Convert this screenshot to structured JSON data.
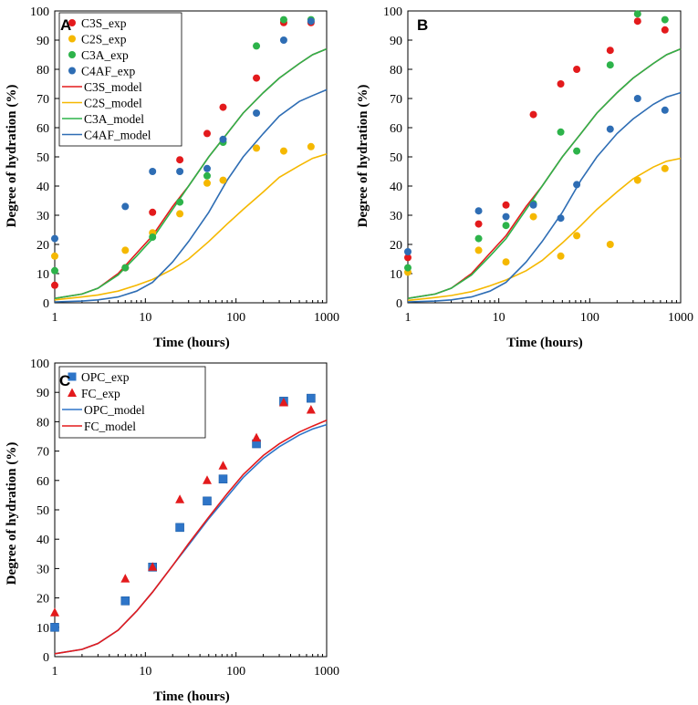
{
  "chart_data": [
    {
      "type": "scatter",
      "panel_label": "A",
      "xscale": "log",
      "xlim": [
        1,
        1000
      ],
      "ylim": [
        0,
        100
      ],
      "xticks": [
        "1",
        "10",
        "100",
        "1000"
      ],
      "yticks": [
        "0",
        "10",
        "20",
        "30",
        "40",
        "50",
        "60",
        "70",
        "80",
        "90",
        "100"
      ],
      "xlabel": "Time (hours)",
      "ylabel": "Degree of hydration (%)",
      "legend_position": "top-left",
      "series": [
        {
          "name": "C3S_exp",
          "kind": "points",
          "marker": "circle",
          "color": "#e31a1c",
          "x": [
            1,
            6,
            12,
            24,
            48,
            72,
            168,
            336,
            672
          ],
          "y": [
            6,
            12,
            31,
            49,
            58,
            67,
            77,
            96,
            96
          ]
        },
        {
          "name": "C2S_exp",
          "kind": "points",
          "marker": "circle",
          "color": "#f5b800",
          "x": [
            1,
            6,
            12,
            24,
            48,
            72,
            168,
            336,
            672
          ],
          "y": [
            16,
            18,
            24,
            30.5,
            41,
            42,
            53,
            52,
            53.5
          ]
        },
        {
          "name": "C3A_exp",
          "kind": "points",
          "marker": "circle",
          "color": "#2db34a",
          "x": [
            1,
            6,
            12,
            24,
            48,
            72,
            168,
            336,
            672
          ],
          "y": [
            11,
            12,
            22.5,
            34.5,
            43.5,
            55,
            88,
            97,
            97
          ]
        },
        {
          "name": "C4AF_exp",
          "kind": "points",
          "marker": "circle",
          "color": "#2e6db4",
          "x": [
            1,
            6,
            12,
            24,
            48,
            72,
            168,
            336,
            672
          ],
          "y": [
            22,
            33,
            45,
            45,
            46,
            56,
            65,
            90,
            96.5
          ]
        },
        {
          "name": "C3S_model",
          "kind": "line",
          "color": "#e31a1c",
          "x": [
            1,
            2,
            3,
            5,
            8,
            12,
            20,
            30,
            50,
            80,
            120,
            200,
            300,
            500,
            700,
            1000
          ],
          "y": [
            1.5,
            3,
            5,
            10,
            17,
            23,
            33,
            40,
            50,
            58,
            65,
            72,
            77,
            82,
            85,
            87
          ]
        },
        {
          "name": "C2S_model",
          "kind": "line",
          "color": "#f5b800",
          "x": [
            1,
            2,
            3,
            5,
            8,
            12,
            20,
            30,
            50,
            80,
            120,
            200,
            300,
            500,
            700,
            1000
          ],
          "y": [
            1,
            2,
            2.7,
            4,
            6,
            8,
            11.5,
            15,
            21,
            27,
            32,
            38,
            43,
            47,
            49.5,
            51
          ]
        },
        {
          "name": "C3A_model",
          "kind": "line",
          "color": "#2db34a",
          "x": [
            1,
            2,
            3,
            5,
            8,
            12,
            20,
            30,
            50,
            80,
            120,
            200,
            300,
            500,
            700,
            1000
          ],
          "y": [
            1.5,
            3,
            5,
            9.5,
            16,
            22,
            32,
            40,
            50,
            58,
            65,
            72,
            77,
            82,
            85,
            87
          ]
        },
        {
          "name": "C4AF_model",
          "kind": "line",
          "color": "#2e6db4",
          "x": [
            1,
            2,
            3,
            5,
            8,
            12,
            20,
            30,
            50,
            80,
            120,
            200,
            300,
            500,
            700,
            1000
          ],
          "y": [
            0.3,
            0.6,
            1,
            2,
            4,
            7,
            14,
            21,
            31,
            42,
            50,
            58,
            64,
            69,
            71,
            73
          ]
        }
      ]
    },
    {
      "type": "scatter",
      "panel_label": "B",
      "xscale": "log",
      "xlim": [
        1,
        1000
      ],
      "ylim": [
        0,
        100
      ],
      "xticks": [
        "1",
        "10",
        "100",
        "1000"
      ],
      "yticks": [
        "0",
        "10",
        "20",
        "30",
        "40",
        "50",
        "60",
        "70",
        "80",
        "90",
        "100"
      ],
      "xlabel": "Time (hours)",
      "ylabel": "Degree of hydration (%)",
      "series": [
        {
          "name": "C3S_exp",
          "kind": "points",
          "marker": "circle",
          "color": "#e31a1c",
          "x": [
            1,
            6,
            12,
            24,
            48,
            72,
            168,
            336,
            672
          ],
          "y": [
            15.5,
            27,
            33.5,
            64.5,
            75,
            80,
            86.5,
            96.5,
            93.5
          ]
        },
        {
          "name": "C2S_exp",
          "kind": "points",
          "marker": "circle",
          "color": "#f5b800",
          "x": [
            1,
            6,
            12,
            24,
            48,
            72,
            168,
            336,
            672
          ],
          "y": [
            10.5,
            18,
            14,
            29.5,
            16,
            23,
            20,
            42,
            46
          ]
        },
        {
          "name": "C3A_exp",
          "kind": "points",
          "marker": "circle",
          "color": "#2db34a",
          "x": [
            1,
            6,
            12,
            24,
            48,
            72,
            168,
            336,
            672
          ],
          "y": [
            12,
            22,
            26.5,
            34,
            58.5,
            52,
            81.5,
            99,
            97
          ]
        },
        {
          "name": "C4AF_exp",
          "kind": "points",
          "marker": "circle",
          "color": "#2e6db4",
          "x": [
            1,
            6,
            12,
            24,
            48,
            72,
            168,
            336,
            672
          ],
          "y": [
            17.5,
            31.5,
            29.5,
            33.5,
            29,
            40.5,
            59.5,
            70,
            66
          ]
        },
        {
          "name": "C3S_model",
          "kind": "line",
          "color": "#e31a1c",
          "x": [
            1,
            2,
            3,
            5,
            8,
            12,
            20,
            30,
            50,
            80,
            120,
            200,
            300,
            500,
            700,
            1000
          ],
          "y": [
            1.5,
            3,
            5,
            10,
            17,
            23,
            33,
            40,
            50,
            58,
            65,
            72,
            77,
            82,
            85,
            87
          ]
        },
        {
          "name": "C2S_model",
          "kind": "line",
          "color": "#f5b800",
          "x": [
            1,
            2,
            3,
            5,
            8,
            12,
            20,
            30,
            50,
            80,
            120,
            200,
            300,
            500,
            700,
            1000
          ],
          "y": [
            0.8,
            1.8,
            2.5,
            3.8,
            5.8,
            7.8,
            11,
            14.5,
            20.5,
            26.5,
            32,
            38,
            42.5,
            46.5,
            48.5,
            49.5
          ]
        },
        {
          "name": "C3A_model",
          "kind": "line",
          "color": "#2db34a",
          "x": [
            1,
            2,
            3,
            5,
            8,
            12,
            20,
            30,
            50,
            80,
            120,
            200,
            300,
            500,
            700,
            1000
          ],
          "y": [
            1.5,
            3,
            5,
            9.5,
            16,
            22,
            32,
            40,
            50,
            58,
            65,
            72,
            77,
            82,
            85,
            87
          ]
        },
        {
          "name": "C4AF_model",
          "kind": "line",
          "color": "#2e6db4",
          "x": [
            1,
            2,
            3,
            5,
            8,
            12,
            20,
            30,
            50,
            80,
            120,
            200,
            300,
            500,
            700,
            1000
          ],
          "y": [
            0.3,
            0.6,
            1,
            2,
            4,
            7,
            14,
            21,
            31,
            42,
            50,
            58,
            63,
            68,
            70.5,
            72
          ]
        }
      ]
    },
    {
      "type": "scatter",
      "panel_label": "C",
      "xscale": "log",
      "xlim": [
        1,
        1000
      ],
      "ylim": [
        0,
        100
      ],
      "xticks": [
        "1",
        "10",
        "100",
        "1000"
      ],
      "yticks": [
        "0",
        "10",
        "20",
        "30",
        "40",
        "50",
        "60",
        "70",
        "80",
        "90",
        "100"
      ],
      "xlabel": "Time (hours)",
      "ylabel": "Degree of hydration (%)",
      "legend_position": "top-left",
      "series": [
        {
          "name": "OPC_exp",
          "kind": "points",
          "marker": "square",
          "color": "#2e75c8",
          "x": [
            1,
            6,
            12,
            24,
            48,
            72,
            168,
            336,
            672
          ],
          "y": [
            10,
            19,
            30.5,
            44,
            53,
            60.5,
            72.5,
            87,
            88
          ]
        },
        {
          "name": "FC_exp",
          "kind": "points",
          "marker": "triangle",
          "color": "#e31a1c",
          "x": [
            1,
            6,
            12,
            24,
            48,
            72,
            168,
            336,
            672
          ],
          "y": [
            15,
            26.5,
            30.5,
            53.5,
            60,
            65,
            74.5,
            86.5,
            84
          ]
        },
        {
          "name": "OPC_model",
          "kind": "line",
          "color": "#2e75c8",
          "x": [
            1,
            2,
            3,
            5,
            8,
            12,
            20,
            30,
            50,
            80,
            120,
            200,
            300,
            500,
            700,
            1000
          ],
          "y": [
            1,
            2.5,
            4.5,
            9,
            15.5,
            22,
            31,
            38,
            47,
            54.5,
            61,
            67.5,
            71.5,
            75.5,
            77.5,
            79
          ]
        },
        {
          "name": "FC_model",
          "kind": "line",
          "color": "#e31a1c",
          "x": [
            1,
            2,
            3,
            5,
            8,
            12,
            20,
            30,
            50,
            80,
            120,
            200,
            300,
            500,
            700,
            1000
          ],
          "y": [
            1,
            2.5,
            4.5,
            9,
            15.5,
            22,
            31,
            38.5,
            47.5,
            55.5,
            62,
            68.5,
            72.5,
            76.5,
            78.5,
            80.5
          ]
        }
      ]
    }
  ]
}
